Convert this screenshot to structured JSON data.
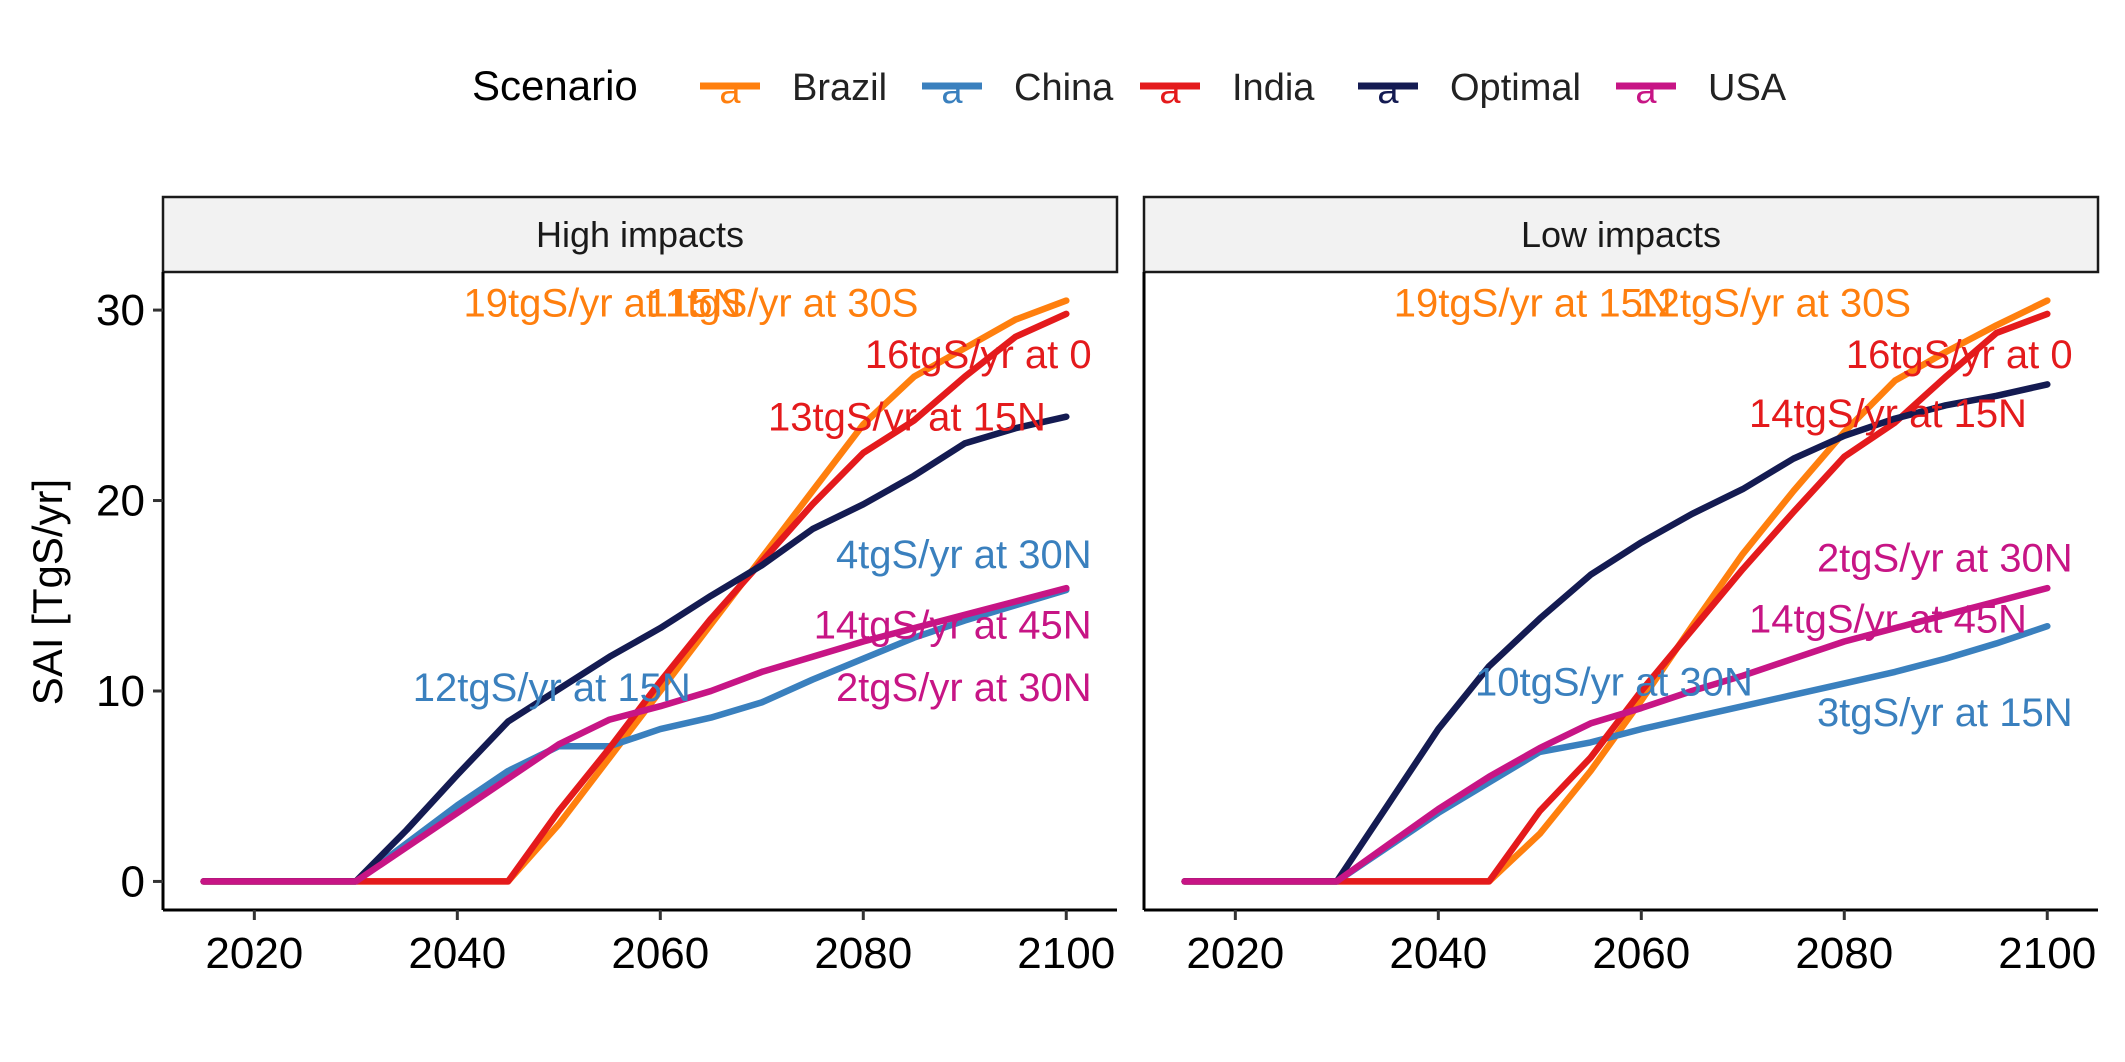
{
  "legend": {
    "title": "Scenario",
    "key_glyph": "a",
    "position": "top",
    "items": [
      {
        "label": "Brazil",
        "color": "#FF7F0E"
      },
      {
        "label": "China",
        "color": "#3A80BE"
      },
      {
        "label": "India",
        "color": "#E41A1C"
      },
      {
        "label": "Optimal",
        "color": "#141B52"
      },
      {
        "label": "USA",
        "color": "#C71585"
      }
    ]
  },
  "y_axis_label": "SAI [TgS/yr]",
  "chart_data": [
    {
      "type": "line",
      "facet": "High impacts",
      "xlim": [
        2011,
        2105
      ],
      "ylim": [
        -1.5,
        32
      ],
      "xticks": [
        2020,
        2040,
        2060,
        2080,
        2100
      ],
      "yticks": [
        0,
        10,
        20,
        30
      ],
      "ylabel": "SAI [TgS/yr]",
      "grid": false,
      "series": [
        {
          "name": "Brazil",
          "color": "#FF7F0E",
          "points": [
            [
              2015,
              0
            ],
            [
              2030,
              0
            ],
            [
              2045,
              0
            ],
            [
              2050,
              3
            ],
            [
              2055,
              6.5
            ],
            [
              2060,
              10
            ],
            [
              2065,
              13.5
            ],
            [
              2070,
              17
            ],
            [
              2075,
              20.5
            ],
            [
              2080,
              24
            ],
            [
              2085,
              26.5
            ],
            [
              2090,
              28
            ],
            [
              2095,
              29.5
            ],
            [
              2100,
              30.5
            ]
          ]
        },
        {
          "name": "China",
          "color": "#3A80BE",
          "points": [
            [
              2015,
              0
            ],
            [
              2030,
              0
            ],
            [
              2035,
              2
            ],
            [
              2040,
              4
            ],
            [
              2045,
              5.8
            ],
            [
              2050,
              7.1
            ],
            [
              2055,
              7.1
            ],
            [
              2060,
              8
            ],
            [
              2065,
              8.6
            ],
            [
              2070,
              9.4
            ],
            [
              2075,
              10.6
            ],
            [
              2080,
              11.7
            ],
            [
              2085,
              12.8
            ],
            [
              2090,
              13.7
            ],
            [
              2095,
              14.5
            ],
            [
              2100,
              15.3
            ]
          ]
        },
        {
          "name": "India",
          "color": "#E41A1C",
          "points": [
            [
              2015,
              0
            ],
            [
              2030,
              0
            ],
            [
              2045,
              0
            ],
            [
              2050,
              3.7
            ],
            [
              2055,
              7
            ],
            [
              2060,
              10.5
            ],
            [
              2065,
              13.8
            ],
            [
              2070,
              16.8
            ],
            [
              2075,
              19.8
            ],
            [
              2080,
              22.5
            ],
            [
              2085,
              24.2
            ],
            [
              2090,
              26.5
            ],
            [
              2095,
              28.6
            ],
            [
              2100,
              29.8
            ]
          ]
        },
        {
          "name": "Optimal",
          "color": "#141B52",
          "points": [
            [
              2015,
              0
            ],
            [
              2030,
              0
            ],
            [
              2035,
              2.7
            ],
            [
              2040,
              5.6
            ],
            [
              2045,
              8.4
            ],
            [
              2050,
              10.1
            ],
            [
              2055,
              11.8
            ],
            [
              2060,
              13.3
            ],
            [
              2065,
              15
            ],
            [
              2070,
              16.6
            ],
            [
              2075,
              18.5
            ],
            [
              2080,
              19.8
            ],
            [
              2085,
              21.3
            ],
            [
              2090,
              23
            ],
            [
              2095,
              23.8
            ],
            [
              2100,
              24.4
            ]
          ]
        },
        {
          "name": "USA",
          "color": "#C71585",
          "points": [
            [
              2015,
              0
            ],
            [
              2030,
              0
            ],
            [
              2035,
              1.8
            ],
            [
              2040,
              3.6
            ],
            [
              2045,
              5.4
            ],
            [
              2050,
              7.2
            ],
            [
              2055,
              8.5
            ],
            [
              2060,
              9.2
            ],
            [
              2065,
              10
            ],
            [
              2070,
              11
            ],
            [
              2075,
              11.8
            ],
            [
              2080,
              12.6
            ],
            [
              2085,
              13.3
            ],
            [
              2090,
              14
            ],
            [
              2095,
              14.7
            ],
            [
              2100,
              15.4
            ]
          ]
        }
      ],
      "annotations": [
        {
          "text": "19tgS/yr at 15N",
          "color": "#FF7F0E",
          "x": 2068,
          "y": 30.4,
          "anchor": "end"
        },
        {
          "text": "11tgS/yr at 30S",
          "color": "#FF7F0E",
          "x": 2072,
          "y": 30.4,
          "anchor": "middle"
        },
        {
          "text": "16tgS/yr at 0",
          "color": "#E41A1C",
          "x": 2102.5,
          "y": 27.7,
          "anchor": "end"
        },
        {
          "text": "13tgS/yr at 15N",
          "color": "#E41A1C",
          "x": 2098,
          "y": 24.4,
          "anchor": "end"
        },
        {
          "text": "4tgS/yr at 30N",
          "color": "#3A80BE",
          "x": 2102.5,
          "y": 17.2,
          "anchor": "end"
        },
        {
          "text": "14tgS/yr at 45N",
          "color": "#C71585",
          "x": 2102.5,
          "y": 13.5,
          "anchor": "end"
        },
        {
          "text": "12tgS/yr at 15N",
          "color": "#3A80BE",
          "x": 2063,
          "y": 10.2,
          "anchor": "end"
        },
        {
          "text": "2tgS/yr at 30N",
          "color": "#C71585",
          "x": 2102.5,
          "y": 10.2,
          "anchor": "end"
        }
      ]
    },
    {
      "type": "line",
      "facet": "Low impacts",
      "xlim": [
        2011,
        2105
      ],
      "ylim": [
        -1.5,
        32
      ],
      "xticks": [
        2020,
        2040,
        2060,
        2080,
        2100
      ],
      "yticks": [
        0,
        10,
        20,
        30
      ],
      "ylabel": "SAI [TgS/yr]",
      "grid": false,
      "series": [
        {
          "name": "Brazil",
          "color": "#FF7F0E",
          "points": [
            [
              2015,
              0
            ],
            [
              2030,
              0
            ],
            [
              2045,
              0
            ],
            [
              2050,
              2.5
            ],
            [
              2055,
              5.8
            ],
            [
              2060,
              9.5
            ],
            [
              2065,
              13.4
            ],
            [
              2070,
              17.2
            ],
            [
              2075,
              20.5
            ],
            [
              2080,
              23.6
            ],
            [
              2085,
              26.3
            ],
            [
              2090,
              27.8
            ],
            [
              2095,
              29.2
            ],
            [
              2100,
              30.5
            ]
          ]
        },
        {
          "name": "China",
          "color": "#3A80BE",
          "points": [
            [
              2015,
              0
            ],
            [
              2030,
              0
            ],
            [
              2035,
              1.8
            ],
            [
              2040,
              3.6
            ],
            [
              2045,
              5.2
            ],
            [
              2050,
              6.8
            ],
            [
              2055,
              7.3
            ],
            [
              2060,
              8
            ],
            [
              2065,
              8.6
            ],
            [
              2070,
              9.2
            ],
            [
              2075,
              9.8
            ],
            [
              2080,
              10.4
            ],
            [
              2085,
              11
            ],
            [
              2090,
              11.7
            ],
            [
              2095,
              12.5
            ],
            [
              2100,
              13.4
            ]
          ]
        },
        {
          "name": "India",
          "color": "#E41A1C",
          "points": [
            [
              2015,
              0
            ],
            [
              2030,
              0
            ],
            [
              2045,
              0
            ],
            [
              2050,
              3.7
            ],
            [
              2055,
              6.5
            ],
            [
              2060,
              10
            ],
            [
              2065,
              13.2
            ],
            [
              2070,
              16.4
            ],
            [
              2075,
              19.4
            ],
            [
              2080,
              22.3
            ],
            [
              2085,
              24.1
            ],
            [
              2090,
              26.5
            ],
            [
              2095,
              28.8
            ],
            [
              2100,
              29.8
            ]
          ]
        },
        {
          "name": "Optimal",
          "color": "#141B52",
          "points": [
            [
              2015,
              0
            ],
            [
              2030,
              0
            ],
            [
              2035,
              4
            ],
            [
              2040,
              8
            ],
            [
              2045,
              11.3
            ],
            [
              2050,
              13.8
            ],
            [
              2055,
              16.1
            ],
            [
              2060,
              17.8
            ],
            [
              2065,
              19.3
            ],
            [
              2070,
              20.6
            ],
            [
              2075,
              22.2
            ],
            [
              2080,
              23.4
            ],
            [
              2085,
              24.3
            ],
            [
              2090,
              25
            ],
            [
              2095,
              25.5
            ],
            [
              2100,
              26.1
            ]
          ]
        },
        {
          "name": "USA",
          "color": "#C71585",
          "points": [
            [
              2015,
              0
            ],
            [
              2030,
              0
            ],
            [
              2035,
              1.9
            ],
            [
              2040,
              3.8
            ],
            [
              2045,
              5.5
            ],
            [
              2050,
              7
            ],
            [
              2055,
              8.3
            ],
            [
              2060,
              9.1
            ],
            [
              2065,
              10
            ],
            [
              2070,
              10.8
            ],
            [
              2075,
              11.7
            ],
            [
              2080,
              12.6
            ],
            [
              2085,
              13.3
            ],
            [
              2090,
              14
            ],
            [
              2095,
              14.7
            ],
            [
              2100,
              15.4
            ]
          ]
        }
      ],
      "annotations": [
        {
          "text": "19tgS/yr at 15N",
          "color": "#FF7F0E",
          "x": 2063,
          "y": 30.4,
          "anchor": "end"
        },
        {
          "text": "12tgS/yr at 30S",
          "color": "#FF7F0E",
          "x": 2073,
          "y": 30.4,
          "anchor": "middle"
        },
        {
          "text": "16tgS/yr at 0",
          "color": "#E41A1C",
          "x": 2102.5,
          "y": 27.7,
          "anchor": "end"
        },
        {
          "text": "14tgS/yr at 15N",
          "color": "#E41A1C",
          "x": 2098,
          "y": 24.6,
          "anchor": "end"
        },
        {
          "text": "2tgS/yr at 30N",
          "color": "#C71585",
          "x": 2102.5,
          "y": 17,
          "anchor": "end"
        },
        {
          "text": "14tgS/yr at 45N",
          "color": "#C71585",
          "x": 2098,
          "y": 13.8,
          "anchor": "end"
        },
        {
          "text": "10tgS/yr at 30N",
          "color": "#3A80BE",
          "x": 2071,
          "y": 10.5,
          "anchor": "end"
        },
        {
          "text": "3tgS/yr at 15N",
          "color": "#3A80BE",
          "x": 2102.5,
          "y": 8.9,
          "anchor": "end"
        }
      ]
    }
  ]
}
